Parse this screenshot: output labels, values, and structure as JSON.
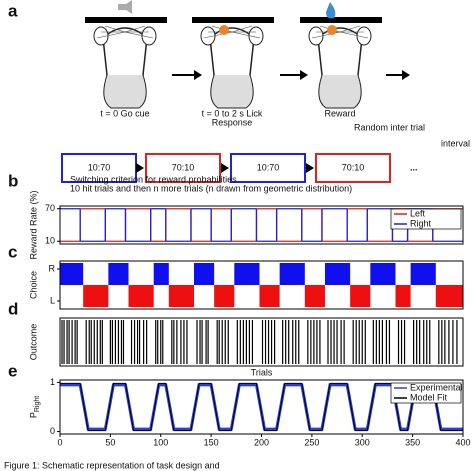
{
  "figure": {
    "panel_a": {
      "label": "a",
      "steps": [
        {
          "lines": [
            "t = 0 Go cue"
          ]
        },
        {
          "lines": [
            "t = 0 to 2 s Lick",
            "Response"
          ]
        },
        {
          "lines": [
            "Reward"
          ]
        }
      ],
      "iti": [
        "Random inter trial",
        "interval"
      ],
      "blocks": [
        {
          "text": "10:70",
          "color": "#2222dd"
        },
        {
          "text": "70:10",
          "color": "#dd2222"
        },
        {
          "text": "10:70",
          "color": "#2222dd"
        },
        {
          "text": "70:10",
          "color": "#dd2222"
        }
      ],
      "ellipsis": "..."
    },
    "caption": "Figure 1: Schematic representation of task design and"
  },
  "chart_data": [
    {
      "type": "step",
      "label": "b",
      "ylabel": "Reward Rate (%)",
      "notes": [
        "Switching  criterion for reward probabilities",
        "10 hit trials and then n more trials (n drawn from geometric distribution)"
      ],
      "x": [
        0,
        20,
        45,
        65,
        90,
        105,
        130,
        150,
        170,
        195,
        215,
        240,
        260,
        285,
        305,
        330,
        345,
        370
      ],
      "series": [
        {
          "name": "Left",
          "color": "#e02020",
          "values": [
            10,
            70,
            10,
            70,
            10,
            70,
            10,
            70,
            10,
            70,
            10,
            70,
            10,
            70,
            10,
            70,
            10,
            70
          ]
        },
        {
          "name": "Right",
          "color": "#2020e0",
          "values": [
            70,
            10,
            70,
            10,
            70,
            10,
            70,
            10,
            70,
            10,
            70,
            10,
            70,
            10,
            70,
            10,
            70,
            10
          ]
        }
      ],
      "xlim": [
        0,
        400
      ],
      "ylim": [
        5,
        75
      ],
      "yticks": [
        10,
        70
      ],
      "legend": "top-right"
    },
    {
      "type": "segments",
      "label": "c",
      "ylabel": "Choice",
      "x": [
        0,
        23,
        48,
        68,
        93,
        108,
        133,
        153,
        173,
        198,
        218,
        243,
        263,
        288,
        308,
        333,
        348,
        373
      ],
      "values": [
        1,
        0,
        1,
        0,
        1,
        0,
        1,
        0,
        1,
        0,
        1,
        0,
        1,
        0,
        1,
        0,
        1,
        0
      ],
      "color_high": "#1010ee",
      "color_low": "#ee1010",
      "xlim": [
        0,
        400
      ],
      "ylim": [
        -0.25,
        1.25
      ],
      "yticks": [
        {
          "value": 1,
          "label": "R"
        },
        {
          "value": 0,
          "label": "L"
        }
      ]
    },
    {
      "type": "event",
      "label": "d",
      "ylabel": "Outcome",
      "xlabel": "Trials",
      "color": "#000000",
      "x": [
        2,
        4,
        7,
        9,
        12,
        15,
        17,
        26,
        29,
        31,
        34,
        37,
        40,
        42,
        50,
        52,
        55,
        58,
        61,
        63,
        71,
        74,
        77,
        79,
        83,
        86,
        95,
        97,
        100,
        102,
        111,
        113,
        116,
        120,
        123,
        126,
        136,
        139,
        141,
        145,
        147,
        156,
        158,
        161,
        164,
        167,
        176,
        179,
        182,
        185,
        188,
        191,
        201,
        204,
        207,
        210,
        213,
        221,
        224,
        227,
        231,
        234,
        237,
        246,
        249,
        252,
        255,
        258,
        266,
        269,
        272,
        275,
        279,
        282,
        291,
        294,
        297,
        300,
        303,
        311,
        314,
        317,
        320,
        324,
        327,
        336,
        339,
        342,
        351,
        354,
        357,
        361,
        364,
        367,
        376,
        379,
        382,
        386,
        390,
        394
      ],
      "xlim": [
        0,
        400
      ]
    },
    {
      "type": "line",
      "label": "e",
      "ylabel": "P",
      "ylabel_sub": "Right",
      "x": [
        0,
        20,
        28,
        45,
        53,
        65,
        73,
        90,
        98,
        105,
        113,
        130,
        138,
        150,
        158,
        170,
        178,
        195,
        203,
        215,
        223,
        240,
        248,
        260,
        268,
        285,
        293,
        305,
        313,
        330,
        338,
        345,
        353,
        370,
        378,
        400
      ],
      "series": [
        {
          "name": "Experimental",
          "color": "#2a3fd8",
          "values": [
            0.95,
            0.95,
            0.05,
            0.05,
            0.95,
            0.95,
            0.05,
            0.05,
            0.95,
            0.95,
            0.05,
            0.05,
            0.95,
            0.95,
            0.05,
            0.05,
            0.95,
            0.95,
            0.05,
            0.05,
            0.95,
            0.95,
            0.05,
            0.05,
            0.95,
            0.95,
            0.05,
            0.05,
            0.95,
            0.95,
            0.05,
            0.05,
            0.95,
            0.95,
            0.05,
            0.05
          ]
        },
        {
          "name": "Model Fit",
          "color": "#000000",
          "values": [
            0.98,
            0.98,
            0.02,
            0.02,
            0.98,
            0.98,
            0.02,
            0.02,
            0.98,
            0.98,
            0.02,
            0.02,
            0.98,
            0.98,
            0.02,
            0.02,
            0.98,
            0.98,
            0.02,
            0.02,
            0.98,
            0.98,
            0.02,
            0.02,
            0.98,
            0.98,
            0.02,
            0.02,
            0.98,
            0.98,
            0.02,
            0.02,
            0.98,
            0.98,
            0.02,
            0.02
          ]
        }
      ],
      "xlim": [
        0,
        400
      ],
      "ylim": [
        -0.05,
        1.05
      ],
      "xticks": [
        0,
        50,
        100,
        150,
        200,
        250,
        300,
        350,
        400
      ],
      "yticks": [
        0,
        1
      ],
      "legend": "top-right"
    }
  ]
}
